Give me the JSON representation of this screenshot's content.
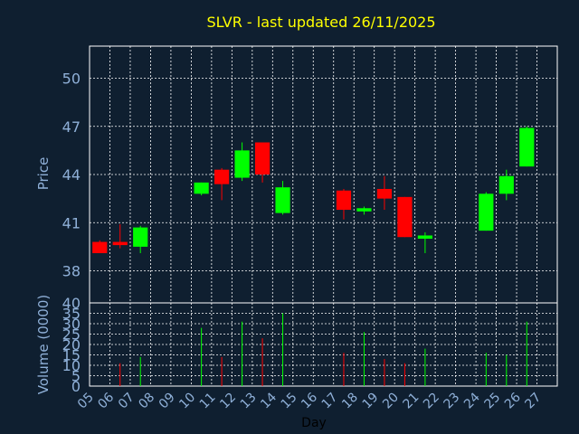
{
  "chart_data": [
    {
      "type": "candlestick",
      "title": "SLVR - last updated 26/11/2025",
      "ylabel": "Price",
      "ylim": [
        36,
        52
      ],
      "yticks": [
        "38",
        "41",
        "44",
        "47",
        "50"
      ],
      "grid": true,
      "colors": {
        "up": "#00ff00",
        "down": "#ff0000",
        "grid": "#ffffff",
        "axis": "#ffffff",
        "text": "#8fb0d8",
        "title": "#ffff00",
        "background": "#0f1f30"
      },
      "days": [
        "05",
        "06",
        "07",
        "08",
        "09",
        "10",
        "11",
        "12",
        "13",
        "14",
        "15",
        "16",
        "17",
        "18",
        "19",
        "20",
        "21",
        "22",
        "23",
        "24",
        "25",
        "26",
        "27"
      ],
      "candles": [
        {
          "day": "05",
          "open": 39.8,
          "high": 39.9,
          "low": 39.1,
          "close": 39.1
        },
        {
          "day": "06",
          "open": 39.8,
          "high": 40.9,
          "low": 39.4,
          "close": 39.6
        },
        {
          "day": "07",
          "open": 39.5,
          "high": 40.8,
          "low": 39.1,
          "close": 40.7
        },
        {
          "day": "10",
          "open": 42.8,
          "high": 43.5,
          "low": 42.7,
          "close": 43.5
        },
        {
          "day": "11",
          "open": 44.3,
          "high": 44.4,
          "low": 42.4,
          "close": 43.4
        },
        {
          "day": "12",
          "open": 43.8,
          "high": 46.0,
          "low": 43.6,
          "close": 45.5
        },
        {
          "day": "13",
          "open": 46.0,
          "high": 46.0,
          "low": 43.5,
          "close": 44.0
        },
        {
          "day": "14",
          "open": 41.6,
          "high": 43.6,
          "low": 41.5,
          "close": 43.2
        },
        {
          "day": "17",
          "open": 43.0,
          "high": 43.1,
          "low": 41.2,
          "close": 41.8
        },
        {
          "day": "18",
          "open": 41.7,
          "high": 42.0,
          "low": 41.5,
          "close": 41.9
        },
        {
          "day": "19",
          "open": 43.1,
          "high": 43.9,
          "low": 41.8,
          "close": 42.5
        },
        {
          "day": "20",
          "open": 42.6,
          "high": 42.6,
          "low": 40.1,
          "close": 40.1
        },
        {
          "day": "21",
          "open": 40.0,
          "high": 40.4,
          "low": 39.1,
          "close": 40.2
        },
        {
          "day": "24",
          "open": 40.5,
          "high": 42.9,
          "low": 40.5,
          "close": 42.8
        },
        {
          "day": "25",
          "open": 42.8,
          "high": 44.3,
          "low": 42.4,
          "close": 43.9
        },
        {
          "day": "26",
          "open": 44.5,
          "high": 47.0,
          "low": 44.5,
          "close": 46.9
        }
      ]
    },
    {
      "type": "bar",
      "xlabel": "Day",
      "ylabel": "Volume (0000)",
      "ylim": [
        0,
        40
      ],
      "yticks": [
        "0",
        "5",
        "10",
        "15",
        "20",
        "25",
        "30",
        "35",
        "40"
      ],
      "volumes": [
        {
          "day": "06",
          "value": 11,
          "direction": "down"
        },
        {
          "day": "07",
          "value": 14,
          "direction": "up"
        },
        {
          "day": "10",
          "value": 28,
          "direction": "up"
        },
        {
          "day": "11",
          "value": 14,
          "direction": "down"
        },
        {
          "day": "12",
          "value": 31,
          "direction": "up"
        },
        {
          "day": "13",
          "value": 23,
          "direction": "down"
        },
        {
          "day": "14",
          "value": 35,
          "direction": "up"
        },
        {
          "day": "17",
          "value": 16,
          "direction": "down"
        },
        {
          "day": "18",
          "value": 26,
          "direction": "up"
        },
        {
          "day": "19",
          "value": 13,
          "direction": "down"
        },
        {
          "day": "20",
          "value": 11,
          "direction": "down"
        },
        {
          "day": "21",
          "value": 18,
          "direction": "up"
        },
        {
          "day": "24",
          "value": 16,
          "direction": "up"
        },
        {
          "day": "25",
          "value": 15,
          "direction": "up"
        },
        {
          "day": "26",
          "value": 31,
          "direction": "up"
        }
      ]
    }
  ]
}
